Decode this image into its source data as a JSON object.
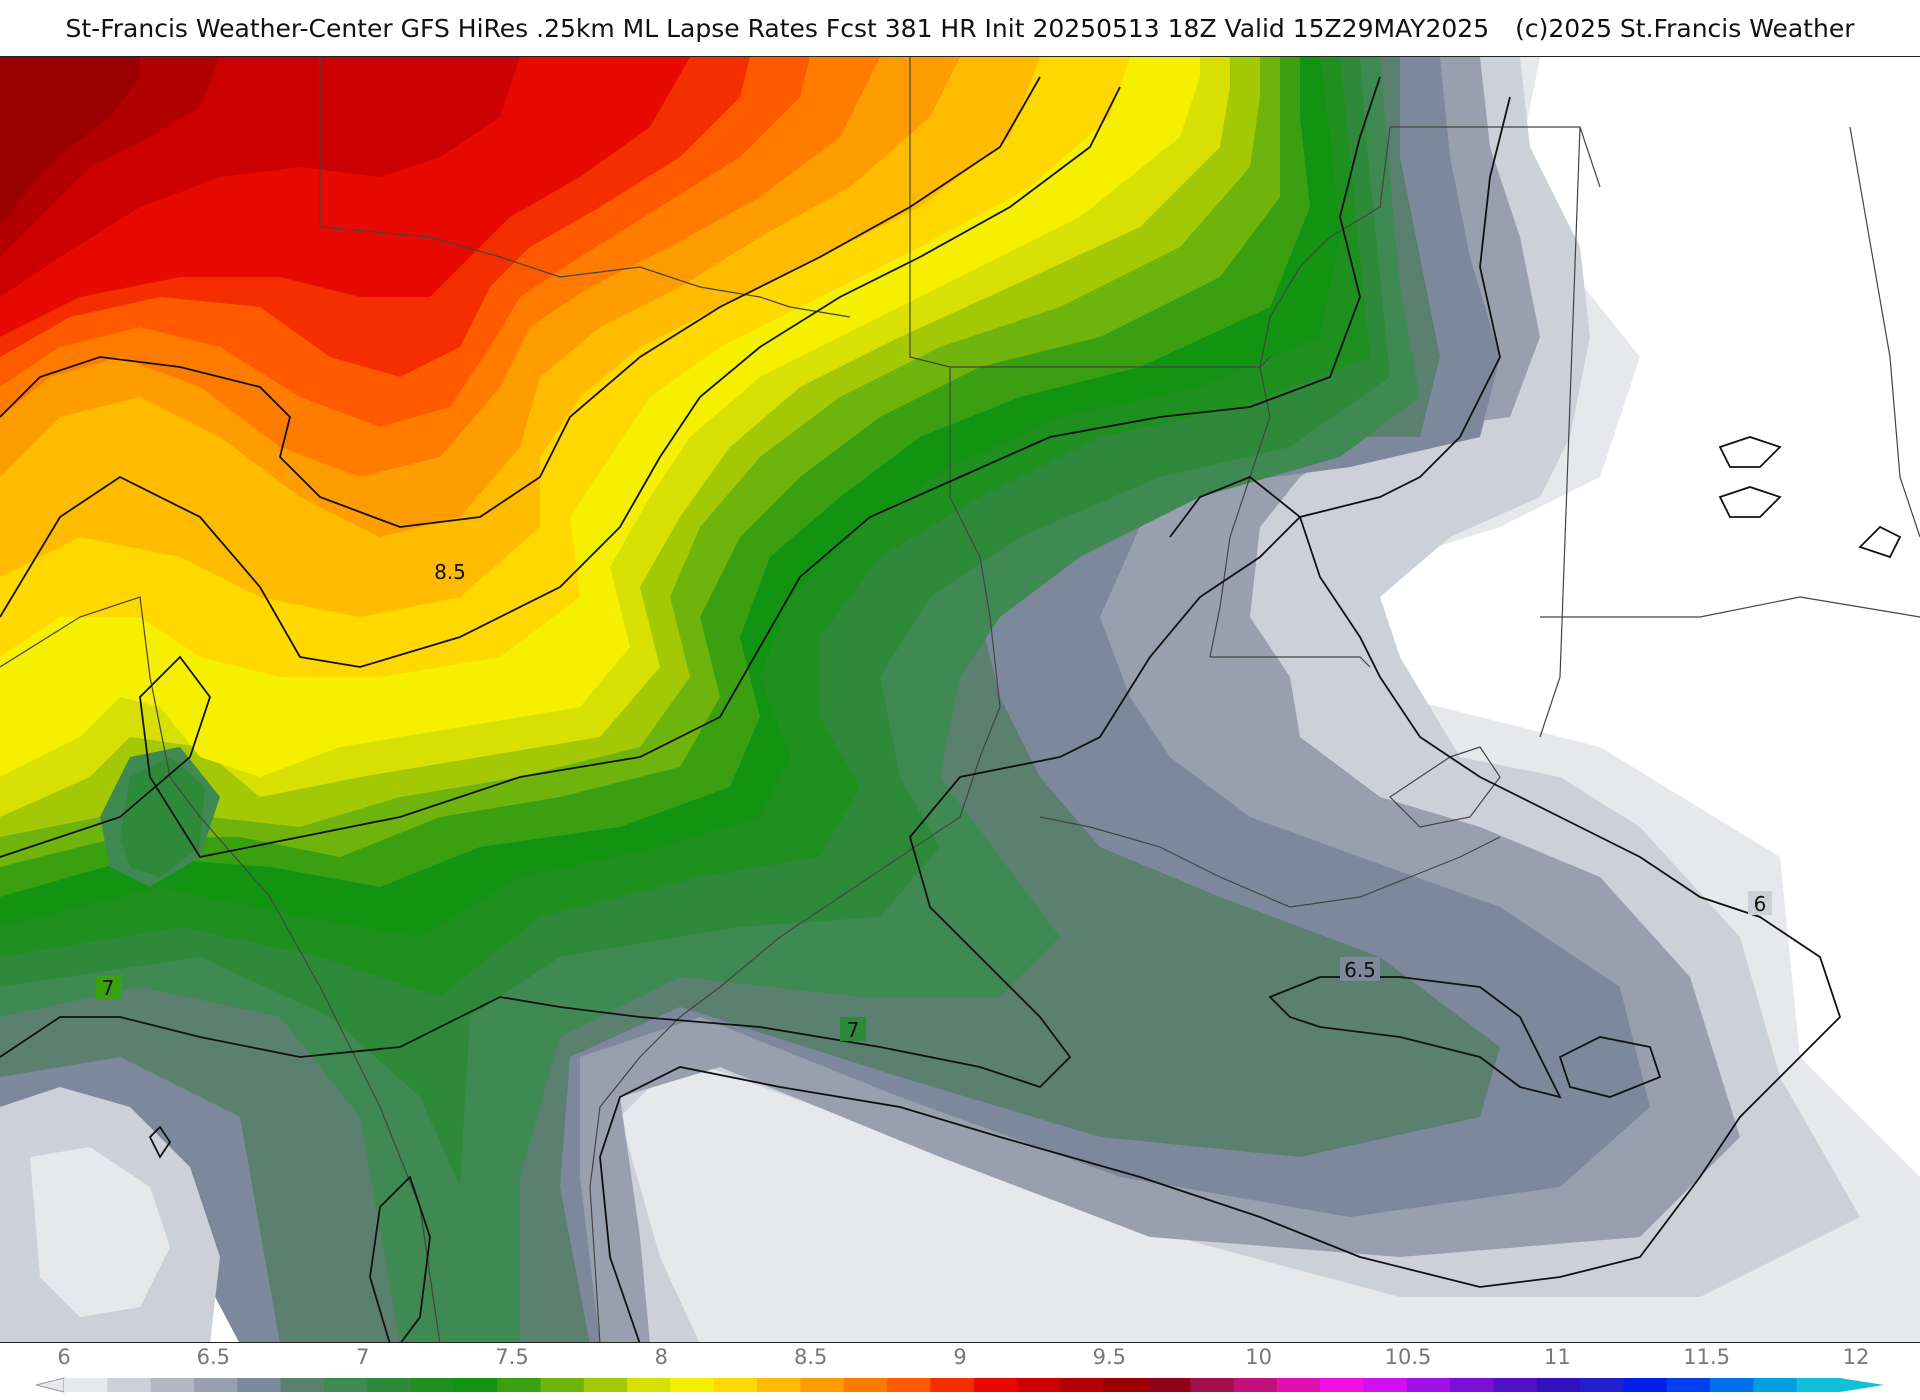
{
  "header": {
    "title_main": "St-Francis Weather-Center GFS HiRes .25km ML Lapse Rates  Fcst 381 HR Init 20250513 18Z  Valid 15Z29MAY2025",
    "title_copyright": "(c)2025 St.Francis Weather"
  },
  "map": {
    "contour_labels": [
      "8.5",
      "7",
      "7",
      "6.5",
      "6"
    ]
  },
  "colorbar": {
    "ticks": [
      "6",
      "6.5",
      "7",
      "7.5",
      "8",
      "8.5",
      "9",
      "9.5",
      "10",
      "10.5",
      "11",
      "11.5",
      "12"
    ],
    "colors": [
      "#e6e8ec",
      "#ccd0d8",
      "#b2b8c4",
      "#98a0b0",
      "#7e889c",
      "#5c8070",
      "#3f8a52",
      "#2e8a3a",
      "#1f8f1f",
      "#129312",
      "#3aa012",
      "#6eb40c",
      "#a2c806",
      "#d8df02",
      "#f5f000",
      "#ffd800",
      "#ffbb00",
      "#ff9c00",
      "#ff7c00",
      "#ff5a00",
      "#f52e00",
      "#e60a00",
      "#cc0000",
      "#b30000",
      "#9a0000",
      "#900018",
      "#a0104a",
      "#c0107a",
      "#e010b0",
      "#f010e0",
      "#d010f0",
      "#a010e8",
      "#7a10d8",
      "#5010c8",
      "#3010c0",
      "#2020d0",
      "#0020e8",
      "#0040f0",
      "#0070e8",
      "#00a0e0",
      "#10c0d8"
    ]
  }
}
